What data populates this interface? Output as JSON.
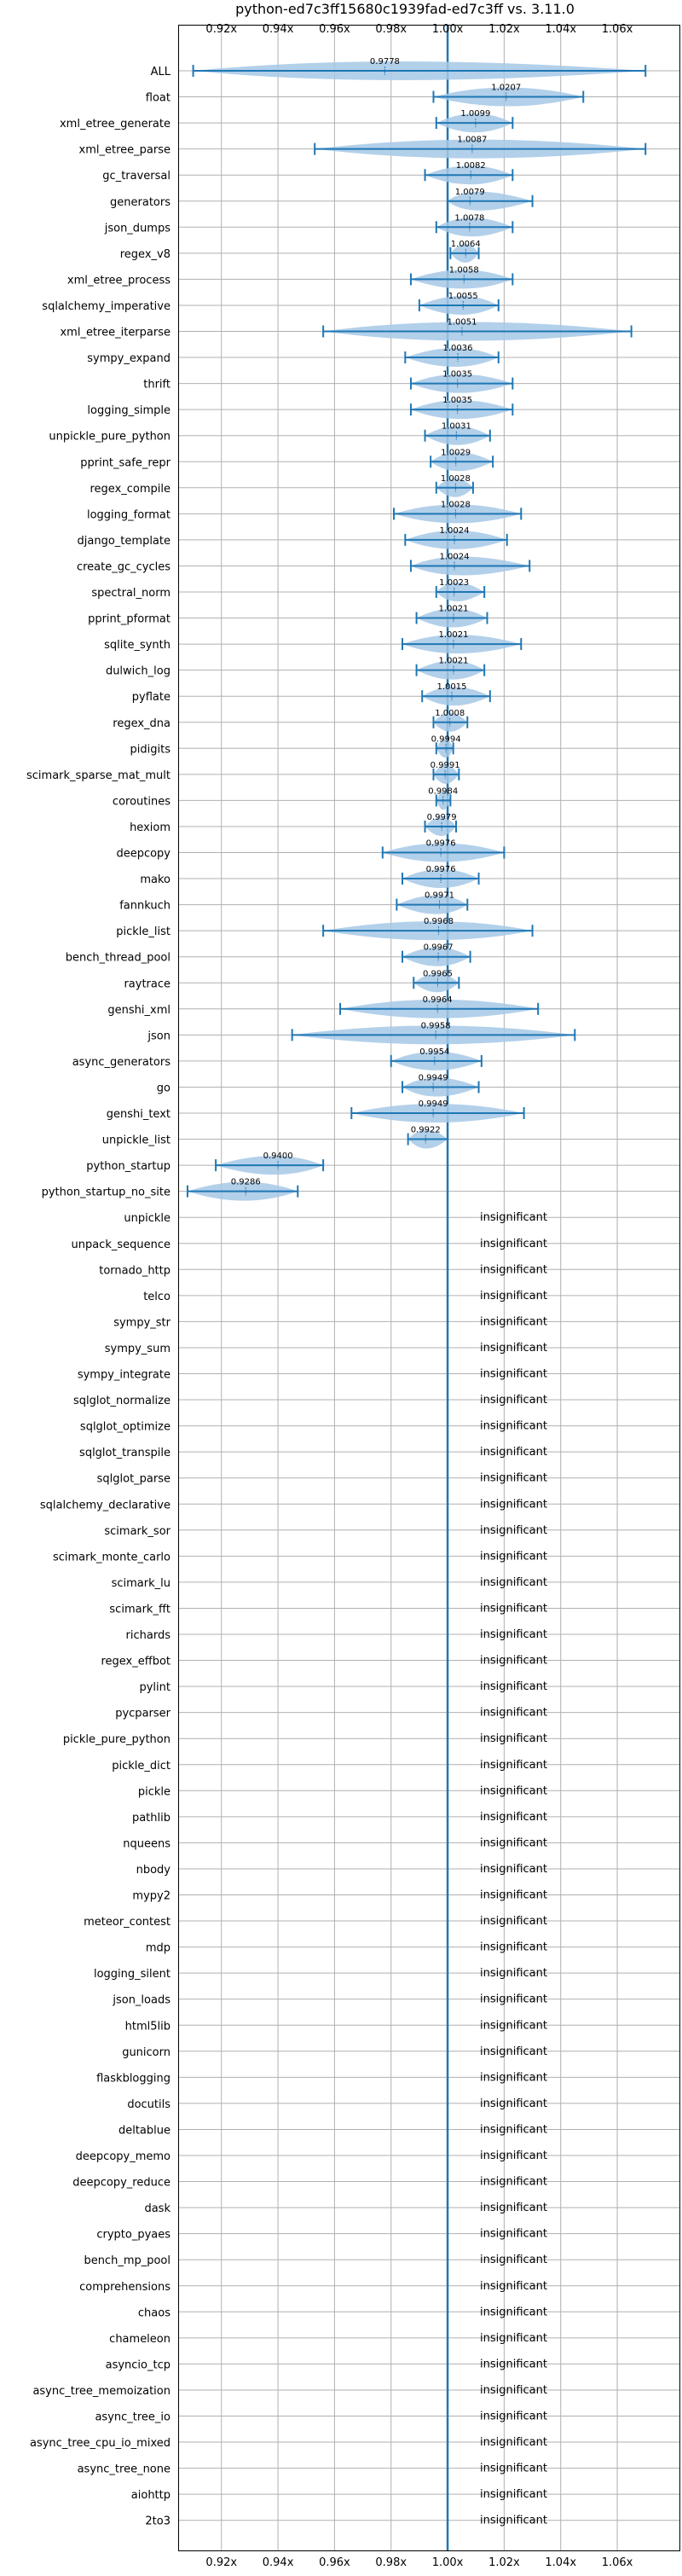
{
  "chart_data": {
    "type": "violin",
    "title": "python-ed7c3ff15680c1939fad-ed7c3ff vs. 3.11.0",
    "xlim": [
      0.905,
      1.082
    ],
    "xticks": [
      0.92,
      0.94,
      0.96,
      0.98,
      1.0,
      1.02,
      1.04,
      1.06
    ],
    "xtick_labels": [
      "0.92x",
      "0.94x",
      "0.96x",
      "0.98x",
      "1.00x",
      "1.02x",
      "1.04x",
      "1.06x"
    ],
    "reference_line": 1.0,
    "grid": true,
    "colors": {
      "violin": "#a6c8e6",
      "line": "#1f77b4",
      "grid": "#b0b0b0"
    },
    "insignificant_text": "insignificant",
    "benchmarks": [
      {
        "name": "ALL",
        "value": 0.9778,
        "label": "0.9778",
        "min": 0.91,
        "max": 1.07
      },
      {
        "name": "float",
        "value": 1.0207,
        "label": "1.0207",
        "min": 0.995,
        "max": 1.048
      },
      {
        "name": "xml_etree_generate",
        "value": 1.0099,
        "label": "1.0099",
        "min": 0.996,
        "max": 1.023
      },
      {
        "name": "xml_etree_parse",
        "value": 1.0087,
        "label": "1.0087",
        "min": 0.953,
        "max": 1.07
      },
      {
        "name": "gc_traversal",
        "value": 1.0082,
        "label": "1.0082",
        "min": 0.992,
        "max": 1.023
      },
      {
        "name": "generators",
        "value": 1.0079,
        "label": "1.0079",
        "min": 1.0,
        "max": 1.03
      },
      {
        "name": "json_dumps",
        "value": 1.0078,
        "label": "1.0078",
        "min": 0.996,
        "max": 1.023
      },
      {
        "name": "regex_v8",
        "value": 1.0064,
        "label": "1.0064",
        "min": 1.001,
        "max": 1.011
      },
      {
        "name": "xml_etree_process",
        "value": 1.0058,
        "label": "1.0058",
        "min": 0.987,
        "max": 1.023
      },
      {
        "name": "sqlalchemy_imperative",
        "value": 1.0055,
        "label": "1.0055",
        "min": 0.99,
        "max": 1.018
      },
      {
        "name": "xml_etree_iterparse",
        "value": 1.0051,
        "label": "1.0051",
        "min": 0.956,
        "max": 1.065
      },
      {
        "name": "sympy_expand",
        "value": 1.0036,
        "label": "1.0036",
        "min": 0.985,
        "max": 1.018
      },
      {
        "name": "thrift",
        "value": 1.0035,
        "label": "1.0035",
        "min": 0.987,
        "max": 1.023
      },
      {
        "name": "logging_simple",
        "value": 1.0035,
        "label": "1.0035",
        "min": 0.987,
        "max": 1.023
      },
      {
        "name": "unpickle_pure_python",
        "value": 1.0031,
        "label": "1.0031",
        "min": 0.992,
        "max": 1.015
      },
      {
        "name": "pprint_safe_repr",
        "value": 1.0029,
        "label": "1.0029",
        "min": 0.994,
        "max": 1.016
      },
      {
        "name": "regex_compile",
        "value": 1.0028,
        "label": "1.0028",
        "min": 0.996,
        "max": 1.009
      },
      {
        "name": "logging_format",
        "value": 1.0028,
        "label": "1.0028",
        "min": 0.981,
        "max": 1.026
      },
      {
        "name": "django_template",
        "value": 1.0024,
        "label": "1.0024",
        "min": 0.985,
        "max": 1.021
      },
      {
        "name": "create_gc_cycles",
        "value": 1.0024,
        "label": "1.0024",
        "min": 0.987,
        "max": 1.029
      },
      {
        "name": "spectral_norm",
        "value": 1.0023,
        "label": "1.0023",
        "min": 0.996,
        "max": 1.013
      },
      {
        "name": "pprint_pformat",
        "value": 1.0021,
        "label": "1.0021",
        "min": 0.989,
        "max": 1.014
      },
      {
        "name": "sqlite_synth",
        "value": 1.0021,
        "label": "1.0021",
        "min": 0.984,
        "max": 1.026
      },
      {
        "name": "dulwich_log",
        "value": 1.0021,
        "label": "1.0021",
        "min": 0.989,
        "max": 1.013
      },
      {
        "name": "pyflate",
        "value": 1.0015,
        "label": "1.0015",
        "min": 0.991,
        "max": 1.015
      },
      {
        "name": "regex_dna",
        "value": 1.0008,
        "label": "1.0008",
        "min": 0.995,
        "max": 1.007
      },
      {
        "name": "pidigits",
        "value": 0.9994,
        "label": "0.9994",
        "min": 0.996,
        "max": 1.002
      },
      {
        "name": "scimark_sparse_mat_mult",
        "value": 0.9991,
        "label": "0.9991",
        "min": 0.995,
        "max": 1.004
      },
      {
        "name": "coroutines",
        "value": 0.9984,
        "label": "0.9984",
        "min": 0.996,
        "max": 1.001
      },
      {
        "name": "hexiom",
        "value": 0.9979,
        "label": "0.9979",
        "min": 0.992,
        "max": 1.003
      },
      {
        "name": "deepcopy",
        "value": 0.9976,
        "label": "0.9976",
        "min": 0.977,
        "max": 1.02
      },
      {
        "name": "mako",
        "value": 0.9976,
        "label": "0.9976",
        "min": 0.984,
        "max": 1.011
      },
      {
        "name": "fannkuch",
        "value": 0.9971,
        "label": "0.9971",
        "min": 0.982,
        "max": 1.007
      },
      {
        "name": "pickle_list",
        "value": 0.9968,
        "label": "0.9968",
        "min": 0.956,
        "max": 1.03
      },
      {
        "name": "bench_thread_pool",
        "value": 0.9967,
        "label": "0.9967",
        "min": 0.984,
        "max": 1.008
      },
      {
        "name": "raytrace",
        "value": 0.9965,
        "label": "0.9965",
        "min": 0.988,
        "max": 1.004
      },
      {
        "name": "genshi_xml",
        "value": 0.9964,
        "label": "0.9964",
        "min": 0.962,
        "max": 1.032
      },
      {
        "name": "json",
        "value": 0.9958,
        "label": "0.9958",
        "min": 0.945,
        "max": 1.045
      },
      {
        "name": "async_generators",
        "value": 0.9954,
        "label": "0.9954",
        "min": 0.98,
        "max": 1.012
      },
      {
        "name": "go",
        "value": 0.9949,
        "label": "0.9949",
        "min": 0.984,
        "max": 1.011
      },
      {
        "name": "genshi_text",
        "value": 0.9949,
        "label": "0.9949",
        "min": 0.966,
        "max": 1.027
      },
      {
        "name": "unpickle_list",
        "value": 0.9922,
        "label": "0.9922",
        "min": 0.986,
        "max": 1.0
      },
      {
        "name": "python_startup",
        "value": 0.94,
        "label": "0.9400",
        "min": 0.918,
        "max": 0.956
      },
      {
        "name": "python_startup_no_site",
        "value": 0.9286,
        "label": "0.9286",
        "min": 0.908,
        "max": 0.947
      },
      {
        "name": "unpickle",
        "insignificant": true
      },
      {
        "name": "unpack_sequence",
        "insignificant": true
      },
      {
        "name": "tornado_http",
        "insignificant": true
      },
      {
        "name": "telco",
        "insignificant": true
      },
      {
        "name": "sympy_str",
        "insignificant": true
      },
      {
        "name": "sympy_sum",
        "insignificant": true
      },
      {
        "name": "sympy_integrate",
        "insignificant": true
      },
      {
        "name": "sqlglot_normalize",
        "insignificant": true
      },
      {
        "name": "sqlglot_optimize",
        "insignificant": true
      },
      {
        "name": "sqlglot_transpile",
        "insignificant": true
      },
      {
        "name": "sqlglot_parse",
        "insignificant": true
      },
      {
        "name": "sqlalchemy_declarative",
        "insignificant": true
      },
      {
        "name": "scimark_sor",
        "insignificant": true
      },
      {
        "name": "scimark_monte_carlo",
        "insignificant": true
      },
      {
        "name": "scimark_lu",
        "insignificant": true
      },
      {
        "name": "scimark_fft",
        "insignificant": true
      },
      {
        "name": "richards",
        "insignificant": true
      },
      {
        "name": "regex_effbot",
        "insignificant": true
      },
      {
        "name": "pylint",
        "insignificant": true
      },
      {
        "name": "pycparser",
        "insignificant": true
      },
      {
        "name": "pickle_pure_python",
        "insignificant": true
      },
      {
        "name": "pickle_dict",
        "insignificant": true
      },
      {
        "name": "pickle",
        "insignificant": true
      },
      {
        "name": "pathlib",
        "insignificant": true
      },
      {
        "name": "nqueens",
        "insignificant": true
      },
      {
        "name": "nbody",
        "insignificant": true
      },
      {
        "name": "mypy2",
        "insignificant": true
      },
      {
        "name": "meteor_contest",
        "insignificant": true
      },
      {
        "name": "mdp",
        "insignificant": true
      },
      {
        "name": "logging_silent",
        "insignificant": true
      },
      {
        "name": "json_loads",
        "insignificant": true
      },
      {
        "name": "html5lib",
        "insignificant": true
      },
      {
        "name": "gunicorn",
        "insignificant": true
      },
      {
        "name": "flaskblogging",
        "insignificant": true
      },
      {
        "name": "docutils",
        "insignificant": true
      },
      {
        "name": "deltablue",
        "insignificant": true
      },
      {
        "name": "deepcopy_memo",
        "insignificant": true
      },
      {
        "name": "deepcopy_reduce",
        "insignificant": true
      },
      {
        "name": "dask",
        "insignificant": true
      },
      {
        "name": "crypto_pyaes",
        "insignificant": true
      },
      {
        "name": "bench_mp_pool",
        "insignificant": true
      },
      {
        "name": "comprehensions",
        "insignificant": true
      },
      {
        "name": "chaos",
        "insignificant": true
      },
      {
        "name": "chameleon",
        "insignificant": true
      },
      {
        "name": "asyncio_tcp",
        "insignificant": true
      },
      {
        "name": "async_tree_memoization",
        "insignificant": true
      },
      {
        "name": "async_tree_io",
        "insignificant": true
      },
      {
        "name": "async_tree_cpu_io_mixed",
        "insignificant": true
      },
      {
        "name": "async_tree_none",
        "insignificant": true
      },
      {
        "name": "aiohttp",
        "insignificant": true
      },
      {
        "name": "2to3",
        "insignificant": true
      }
    ]
  }
}
